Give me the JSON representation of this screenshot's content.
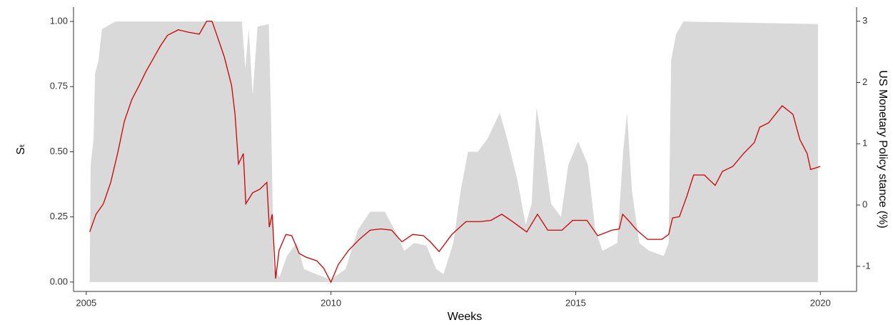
{
  "chart_data": {
    "type": "line",
    "x_label": "Weeks",
    "y_label": "Sₜ",
    "y2_label": "US Monetary Policy stance (%)",
    "xlim": [
      2004.74,
      2020.74
    ],
    "xticks": [
      2005,
      2010,
      2015,
      2020
    ],
    "ylim": [
      -0.036,
      1.055
    ],
    "yticks": [
      {
        "value": 0,
        "label": "0.00"
      },
      {
        "value": 0.25,
        "label": "0.25"
      },
      {
        "value": 0.5,
        "label": "0.50"
      },
      {
        "value": 0.75,
        "label": "0.75"
      },
      {
        "value": 1,
        "label": "1.00"
      }
    ],
    "y2lim": [
      -1.41,
      3.23
    ],
    "y2ticks": [
      -1,
      0,
      1,
      2,
      3
    ],
    "grid": false,
    "series": [
      {
        "type": "area",
        "color": "#d9d9d9",
        "x": [
          2005.07,
          2005.09,
          2005.15,
          2005.18,
          2005.25,
          2005.32,
          2005.5,
          2005.6,
          2008.18,
          2008.25,
          2008.32,
          2008.4,
          2008.5,
          2008.73,
          2008.78,
          2008.83,
          2008.95,
          2009.1,
          2009.3,
          2009.45,
          2009.7,
          2010.0,
          2010.3,
          2010.55,
          2010.8,
          2011.1,
          2011.3,
          2011.5,
          2011.7,
          2011.95,
          2012.15,
          2012.3,
          2012.5,
          2012.65,
          2012.8,
          2013.0,
          2013.2,
          2013.45,
          2013.6,
          2013.8,
          2013.98,
          2014.1,
          2014.2,
          2014.35,
          2014.5,
          2014.7,
          2014.85,
          2015.05,
          2015.25,
          2015.4,
          2015.55,
          2015.85,
          2015.97,
          2016.05,
          2016.15,
          2016.3,
          2016.5,
          2016.8,
          2016.9,
          2016.95,
          2017.05,
          2017.2,
          2019.95
        ],
        "values": [
          0,
          0.45,
          0.55,
          0.8,
          0.85,
          0.97,
          0.99,
          1,
          1,
          0.82,
          0.97,
          0.72,
          0.98,
          0.99,
          0.6,
          0.05,
          0.02,
          0.1,
          0.15,
          0.05,
          0.03,
          0.01,
          0.05,
          0.2,
          0.27,
          0.27,
          0.2,
          0.12,
          0.15,
          0.14,
          0.05,
          0.03,
          0.15,
          0.35,
          0.5,
          0.5,
          0.55,
          0.65,
          0.55,
          0.4,
          0.22,
          0.3,
          0.67,
          0.5,
          0.3,
          0.25,
          0.45,
          0.54,
          0.45,
          0.2,
          0.12,
          0.15,
          0.5,
          0.65,
          0.35,
          0.15,
          0.12,
          0.1,
          0.15,
          0.85,
          0.95,
          1,
          0.99
        ]
      },
      {
        "type": "line",
        "axis": "y2",
        "color": "#cc0000",
        "x": [
          2005.07,
          2005.2,
          2005.35,
          2005.5,
          2005.64,
          2005.78,
          2005.93,
          2006.08,
          2006.22,
          2006.37,
          2006.51,
          2006.66,
          2006.88,
          2007.09,
          2007.31,
          2007.46,
          2007.57,
          2007.67,
          2007.82,
          2007.97,
          2008.04,
          2008.11,
          2008.21,
          2008.26,
          2008.4,
          2008.55,
          2008.69,
          2008.74,
          2008.8,
          2008.87,
          2008.94,
          2009.08,
          2009.2,
          2009.35,
          2009.49,
          2009.71,
          2009.85,
          2010.0,
          2010.15,
          2010.36,
          2010.58,
          2010.8,
          2011.02,
          2011.24,
          2011.45,
          2011.67,
          2011.89,
          2012.03,
          2012.21,
          2012.47,
          2012.76,
          2013.05,
          2013.27,
          2013.49,
          2013.71,
          2014.0,
          2014.22,
          2014.43,
          2014.72,
          2014.94,
          2015.23,
          2015.45,
          2015.74,
          2015.89,
          2015.96,
          2016.1,
          2016.25,
          2016.47,
          2016.76,
          2016.9,
          2016.98,
          2017.12,
          2017.27,
          2017.41,
          2017.63,
          2017.85,
          2018.0,
          2018.21,
          2018.43,
          2018.65,
          2018.76,
          2018.94,
          2019.22,
          2019.44,
          2019.58,
          2019.73,
          2019.8,
          2020.0
        ],
        "values": [
          -0.44,
          -0.15,
          0.02,
          0.37,
          0.84,
          1.37,
          1.72,
          1.95,
          2.18,
          2.39,
          2.59,
          2.77,
          2.86,
          2.82,
          2.79,
          3.0,
          3.0,
          2.77,
          2.42,
          1.95,
          1.48,
          0.67,
          0.84,
          0.02,
          0.2,
          0.26,
          0.37,
          -0.36,
          -0.15,
          -1.2,
          -0.74,
          -0.48,
          -0.5,
          -0.79,
          -0.85,
          -0.91,
          -1.03,
          -1.26,
          -0.97,
          -0.74,
          -0.56,
          -0.41,
          -0.39,
          -0.41,
          -0.6,
          -0.48,
          -0.5,
          -0.6,
          -0.76,
          -0.48,
          -0.27,
          -0.27,
          -0.25,
          -0.15,
          -0.27,
          -0.44,
          -0.15,
          -0.41,
          -0.41,
          -0.25,
          -0.25,
          -0.5,
          -0.41,
          -0.39,
          -0.15,
          -0.27,
          -0.41,
          -0.56,
          -0.56,
          -0.48,
          -0.21,
          -0.19,
          0.14,
          0.49,
          0.49,
          0.32,
          0.55,
          0.63,
          0.84,
          1.02,
          1.27,
          1.34,
          1.62,
          1.48,
          1.07,
          0.84,
          0.58,
          0.63
        ]
      }
    ]
  }
}
